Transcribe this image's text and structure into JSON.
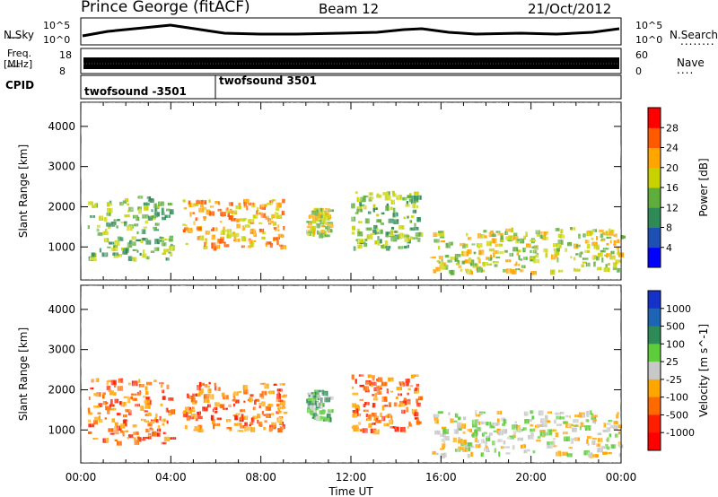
{
  "header": {
    "station": "Prince George (fitACF)",
    "beam": "Beam 12",
    "date": "21/Oct/2012"
  },
  "strips": {
    "nsky": {
      "label": "N.Sky",
      "tick_top": "10^5",
      "tick_bottom": "10^0",
      "right_label": "N.Search",
      "right_tick_top": "10^5",
      "right_tick_bottom": "10^0",
      "legend_dots": "........"
    },
    "freq": {
      "label_line1": "Freq.",
      "label_line2": "[MHz]",
      "tick_top": "18",
      "tick_bottom": "8",
      "right_label": "Nave",
      "right_tick_top": "60",
      "right_tick_bottom": "0",
      "legend_dots": "...."
    },
    "cpid": {
      "label": "CPID",
      "modes": [
        "twofsound -3501",
        "twofsound 3501"
      ]
    }
  },
  "colors": {
    "power_scale": [
      "#0000ff",
      "#1e50b4",
      "#2e8b57",
      "#5fae3c",
      "#c8d200",
      "#ffa500",
      "#ff5a00",
      "#ff0000"
    ],
    "velocity_scale": [
      "#1432c8",
      "#1e64b4",
      "#2e8b57",
      "#5fcc3c",
      "#c8c8c8",
      "#ffa500",
      "#ff6a00",
      "#ff1e00",
      "#ff0000"
    ],
    "ground_scatter": "#b4b4b4"
  },
  "chart_data": [
    {
      "type": "heatmap",
      "name": "power",
      "title": "Prince George (fitACF) Beam 12 21/Oct/2012",
      "xlabel": "Time UT",
      "ylabel": "Slant Range [km]",
      "x_ticks": [
        "00:00",
        "04:00",
        "08:00",
        "12:00",
        "16:00",
        "20:00",
        "00:00"
      ],
      "y_ticks": [
        "1000",
        "2000",
        "3000",
        "4000"
      ],
      "ylim": [
        180,
        4600
      ],
      "colorbar": {
        "label": "Power [dB]",
        "ticks": [
          "4",
          "8",
          "12",
          "16",
          "20",
          "24",
          "28"
        ],
        "range": [
          0,
          30
        ]
      },
      "echo_regions": [
        {
          "t0": 0.3,
          "t1": 4.0,
          "r0": 700,
          "r1": 2300,
          "level": 12
        },
        {
          "t0": 4.5,
          "t1": 9.0,
          "r0": 1000,
          "r1": 2200,
          "level": 22
        },
        {
          "t0": 10.0,
          "t1": 11.0,
          "r0": 1300,
          "r1": 2000,
          "level": 18
        },
        {
          "t0": 12.0,
          "t1": 15.0,
          "r0": 1000,
          "r1": 2400,
          "level": 14
        },
        {
          "t0": 15.5,
          "t1": 24.0,
          "r0": 400,
          "r1": 1500,
          "level": 18
        }
      ]
    },
    {
      "type": "heatmap",
      "name": "velocity",
      "xlabel": "Time UT",
      "ylabel": "Slant Range [km]",
      "x_ticks": [
        "00:00",
        "04:00",
        "08:00",
        "12:00",
        "16:00",
        "20:00",
        "00:00"
      ],
      "y_ticks": [
        "1000",
        "2000",
        "3000",
        "4000"
      ],
      "ylim": [
        180,
        4600
      ],
      "colorbar": {
        "label": "Velocity [m s^-1]",
        "ticks": [
          "1000",
          "500",
          "100",
          "25",
          "-25",
          "-100",
          "-500",
          "-1000"
        ]
      },
      "echo_regions": [
        {
          "t0": 0.3,
          "t1": 4.0,
          "r0": 700,
          "r1": 2300,
          "level": -150
        },
        {
          "t0": 4.5,
          "t1": 9.0,
          "r0": 1000,
          "r1": 2200,
          "level": -300
        },
        {
          "t0": 10.0,
          "t1": 11.0,
          "r0": 1300,
          "r1": 2000,
          "level": 80
        },
        {
          "t0": 12.0,
          "t1": 15.0,
          "r0": 1000,
          "r1": 2400,
          "level": -200
        },
        {
          "t0": 15.5,
          "t1": 24.0,
          "r0": 400,
          "r1": 1500,
          "level": 0
        }
      ]
    }
  ]
}
